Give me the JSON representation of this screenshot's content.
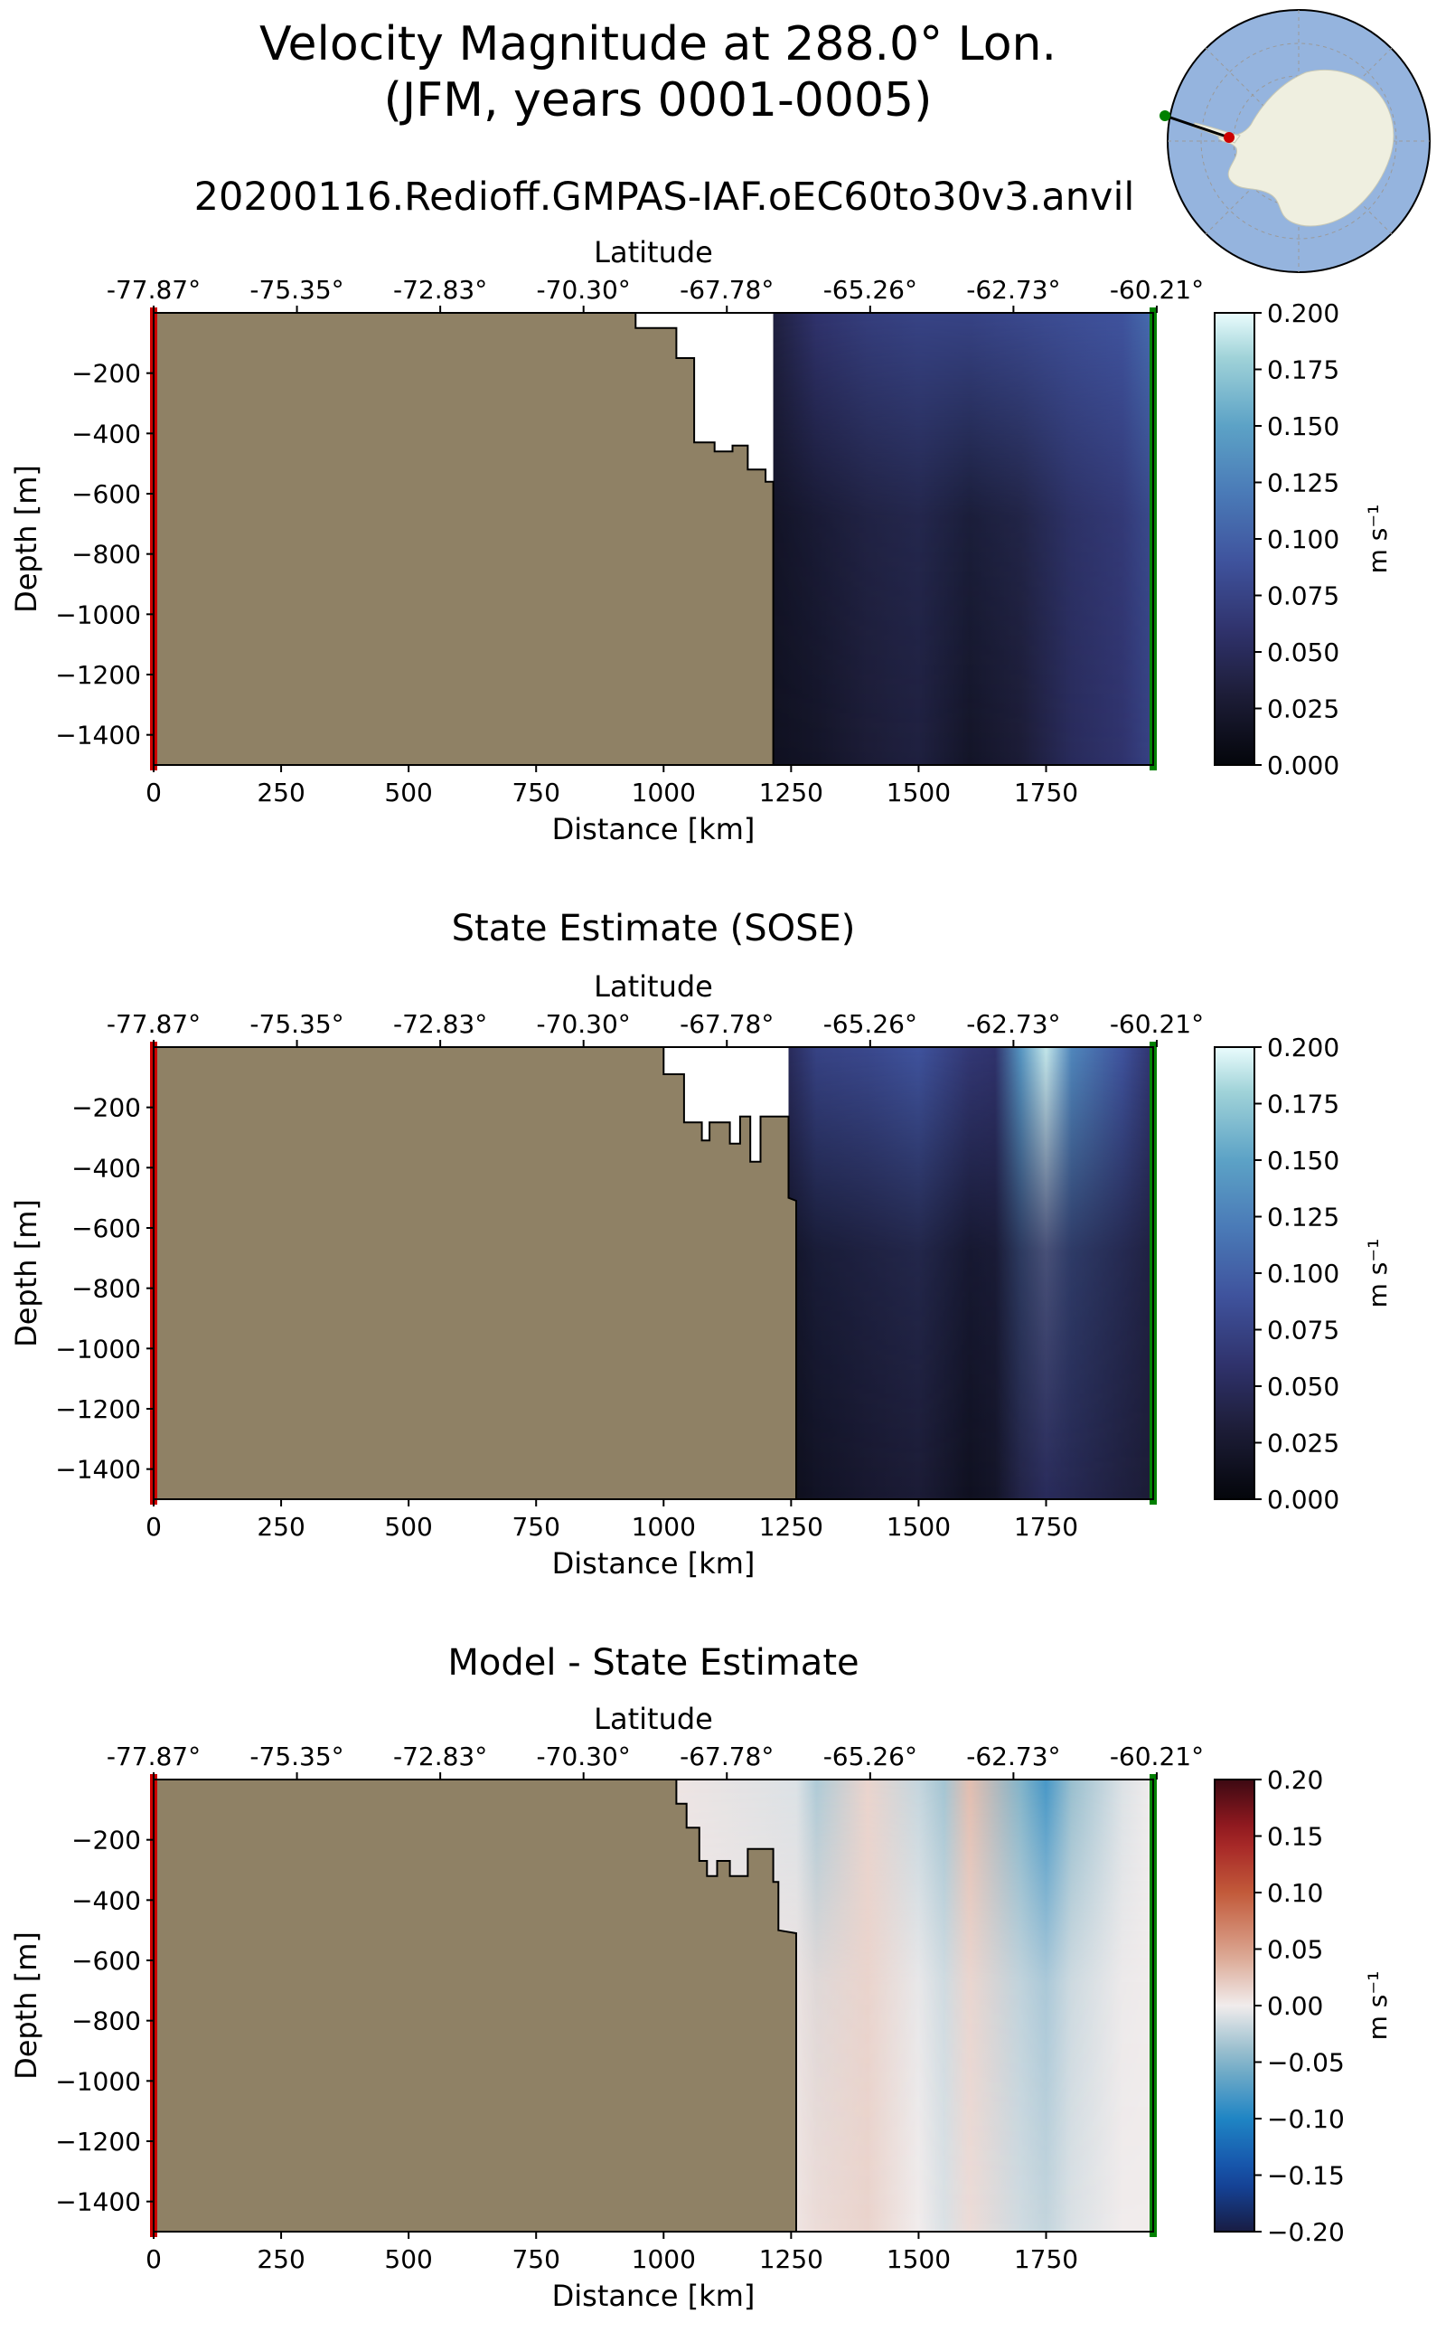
{
  "figure": {
    "title_line1": "Velocity Magnitude at 288.0° Lon.",
    "title_line2": "(JFM, years 0001-0005)",
    "run_name": "20200116.Redioff.GMPAS-IAF.oEC60to30v3.anvil"
  },
  "colors": {
    "land": "#8f8165",
    "start_marker": "#cc0000",
    "end_marker": "#008000",
    "map_ocean": "#95b4de",
    "map_land": "#efefe0"
  },
  "chart_data": [
    {
      "type": "heatmap",
      "title": "",
      "xlabel": "Distance [km]",
      "ylabel": "Depth [m]",
      "top_axis_label": "Latitude",
      "xlim": [
        0,
        1960
      ],
      "ylim": [
        -1500,
        0
      ],
      "x_ticks": [
        0,
        250,
        500,
        750,
        1000,
        1250,
        1500,
        1750
      ],
      "x_tick_labels": [
        "0",
        "250",
        "500",
        "750",
        "1000",
        "1250",
        "1500",
        "1750"
      ],
      "lat_ticks_km": [
        0,
        281,
        562,
        843,
        1124,
        1405,
        1686,
        1967
      ],
      "lat_tick_labels": [
        "-77.87°",
        "-75.35°",
        "-72.83°",
        "-70.30°",
        "-67.78°",
        "-65.26°",
        "-62.73°",
        "-60.21°"
      ],
      "y_ticks": [
        -200,
        -400,
        -600,
        -800,
        -1000,
        -1200,
        -1400
      ],
      "y_tick_labels": [
        "−200",
        "−400",
        "−600",
        "−800",
        "−1000",
        "−1200",
        "−1400"
      ],
      "colorbar": {
        "cmap": "ice",
        "vmin": 0.0,
        "vmax": 0.2,
        "ticks": [
          0.0,
          0.025,
          0.05,
          0.075,
          0.1,
          0.125,
          0.15,
          0.175,
          0.2
        ],
        "tick_labels": [
          "0.000",
          "0.025",
          "0.050",
          "0.075",
          "0.100",
          "0.125",
          "0.150",
          "0.175",
          "0.200"
        ],
        "label": "m s⁻¹"
      },
      "bathymetry": [
        [
          0,
          0
        ],
        [
          945,
          0
        ],
        [
          945,
          -50
        ],
        [
          1025,
          -50
        ],
        [
          1025,
          -150
        ],
        [
          1060,
          -150
        ],
        [
          1060,
          -430
        ],
        [
          1100,
          -430
        ],
        [
          1100,
          -460
        ],
        [
          1135,
          -460
        ],
        [
          1135,
          -440
        ],
        [
          1165,
          -440
        ],
        [
          1165,
          -520
        ],
        [
          1200,
          -520
        ],
        [
          1200,
          -560
        ],
        [
          1215,
          -560
        ],
        [
          1215,
          -1500
        ],
        [
          0,
          -1500
        ]
      ],
      "field": {
        "x": [
          1215,
          1300,
          1400,
          1500,
          1600,
          1700,
          1800,
          1900,
          1960
        ],
        "surface": [
          0.035,
          0.06,
          0.07,
          0.075,
          0.075,
          0.08,
          0.085,
          0.09,
          0.11
        ],
        "deep": [
          0.015,
          0.02,
          0.03,
          0.035,
          0.02,
          0.03,
          0.05,
          0.06,
          0.075
        ]
      }
    },
    {
      "type": "heatmap",
      "title": "State Estimate (SOSE)",
      "xlabel": "Distance [km]",
      "ylabel": "Depth [m]",
      "top_axis_label": "Latitude",
      "xlim": [
        0,
        1960
      ],
      "ylim": [
        -1500,
        0
      ],
      "x_ticks": [
        0,
        250,
        500,
        750,
        1000,
        1250,
        1500,
        1750
      ],
      "x_tick_labels": [
        "0",
        "250",
        "500",
        "750",
        "1000",
        "1250",
        "1500",
        "1750"
      ],
      "lat_ticks_km": [
        0,
        281,
        562,
        843,
        1124,
        1405,
        1686,
        1967
      ],
      "lat_tick_labels": [
        "-77.87°",
        "-75.35°",
        "-72.83°",
        "-70.30°",
        "-67.78°",
        "-65.26°",
        "-62.73°",
        "-60.21°"
      ],
      "y_ticks": [
        -200,
        -400,
        -600,
        -800,
        -1000,
        -1200,
        -1400
      ],
      "y_tick_labels": [
        "−200",
        "−400",
        "−600",
        "−800",
        "−1000",
        "−1200",
        "−1400"
      ],
      "colorbar": {
        "cmap": "ice",
        "vmin": 0.0,
        "vmax": 0.2,
        "ticks": [
          0.0,
          0.025,
          0.05,
          0.075,
          0.1,
          0.125,
          0.15,
          0.175,
          0.2
        ],
        "tick_labels": [
          "0.000",
          "0.025",
          "0.050",
          "0.075",
          "0.100",
          "0.125",
          "0.150",
          "0.175",
          "0.200"
        ],
        "label": "m s⁻¹"
      },
      "bathymetry": [
        [
          0,
          0
        ],
        [
          1000,
          0
        ],
        [
          1000,
          -90
        ],
        [
          1040,
          -90
        ],
        [
          1040,
          -250
        ],
        [
          1075,
          -250
        ],
        [
          1075,
          -310
        ],
        [
          1090,
          -310
        ],
        [
          1090,
          -250
        ],
        [
          1130,
          -250
        ],
        [
          1130,
          -320
        ],
        [
          1150,
          -320
        ],
        [
          1150,
          -230
        ],
        [
          1170,
          -230
        ],
        [
          1170,
          -380
        ],
        [
          1190,
          -380
        ],
        [
          1190,
          -230
        ],
        [
          1245,
          -230
        ],
        [
          1245,
          -500
        ],
        [
          1260,
          -510
        ],
        [
          1260,
          -1500
        ],
        [
          0,
          -1500
        ]
      ],
      "field": {
        "x": [
          1245,
          1300,
          1400,
          1500,
          1600,
          1650,
          1700,
          1750,
          1800,
          1900,
          1960
        ],
        "surface": [
          0.05,
          0.075,
          0.08,
          0.09,
          0.065,
          0.06,
          0.14,
          0.19,
          0.13,
          0.09,
          0.06
        ],
        "deep": [
          0.012,
          0.018,
          0.025,
          0.03,
          0.015,
          0.02,
          0.04,
          0.05,
          0.045,
          0.035,
          0.03
        ]
      }
    },
    {
      "type": "heatmap",
      "title": "Model - State Estimate",
      "xlabel": "Distance [km]",
      "ylabel": "Depth [m]",
      "top_axis_label": "Latitude",
      "xlim": [
        0,
        1960
      ],
      "ylim": [
        -1500,
        0
      ],
      "x_ticks": [
        0,
        250,
        500,
        750,
        1000,
        1250,
        1500,
        1750
      ],
      "x_tick_labels": [
        "0",
        "250",
        "500",
        "750",
        "1000",
        "1250",
        "1500",
        "1750"
      ],
      "lat_ticks_km": [
        0,
        281,
        562,
        843,
        1124,
        1405,
        1686,
        1967
      ],
      "lat_tick_labels": [
        "-77.87°",
        "-75.35°",
        "-72.83°",
        "-70.30°",
        "-67.78°",
        "-65.26°",
        "-62.73°",
        "-60.21°"
      ],
      "y_ticks": [
        -200,
        -400,
        -600,
        -800,
        -1000,
        -1200,
        -1400
      ],
      "y_tick_labels": [
        "−200",
        "−400",
        "−600",
        "−800",
        "−1000",
        "−1200",
        "−1400"
      ],
      "colorbar": {
        "cmap": "balance",
        "vmin": -0.2,
        "vmax": 0.2,
        "ticks": [
          -0.2,
          -0.15,
          -0.1,
          -0.05,
          0.0,
          0.05,
          0.1,
          0.15,
          0.2
        ],
        "tick_labels": [
          "−0.20",
          "−0.15",
          "−0.10",
          "−0.05",
          "0.00",
          "0.05",
          "0.10",
          "0.15",
          "0.20"
        ],
        "label": "m s⁻¹"
      },
      "bathymetry": [
        [
          0,
          0
        ],
        [
          1025,
          0
        ],
        [
          1025,
          -80
        ],
        [
          1045,
          -80
        ],
        [
          1045,
          -160
        ],
        [
          1070,
          -160
        ],
        [
          1070,
          -270
        ],
        [
          1085,
          -270
        ],
        [
          1085,
          -320
        ],
        [
          1105,
          -320
        ],
        [
          1105,
          -270
        ],
        [
          1130,
          -270
        ],
        [
          1130,
          -320
        ],
        [
          1165,
          -320
        ],
        [
          1165,
          -230
        ],
        [
          1215,
          -230
        ],
        [
          1215,
          -340
        ],
        [
          1225,
          -340
        ],
        [
          1225,
          -500
        ],
        [
          1260,
          -510
        ],
        [
          1260,
          -1500
        ],
        [
          0,
          -1500
        ]
      ],
      "field": {
        "x": [
          1000,
          1260,
          1300,
          1400,
          1500,
          1550,
          1600,
          1700,
          1750,
          1800,
          1900,
          1960
        ],
        "surface": [
          0.005,
          -0.01,
          -0.03,
          0.015,
          -0.02,
          -0.035,
          0.03,
          -0.05,
          -0.08,
          -0.04,
          -0.01,
          0.0
        ],
        "deep": [
          0.0,
          0.005,
          0.01,
          0.015,
          0.0,
          -0.01,
          0.01,
          -0.015,
          -0.02,
          -0.01,
          0.0,
          0.0
        ]
      }
    }
  ]
}
